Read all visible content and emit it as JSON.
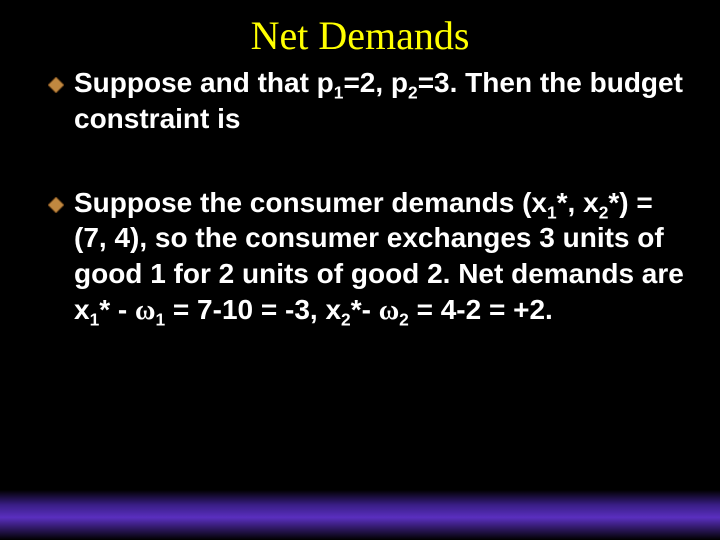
{
  "slide": {
    "title": "Net Demands",
    "title_color": "#ffff00",
    "title_font": "Times New Roman",
    "title_fontsize": 40,
    "background_color": "#000000",
    "body_text_color": "#ffffff",
    "body_fontsize": 28,
    "body_fontweight": "bold",
    "bullets": [
      {
        "runs": [
          {
            "t": "Suppose"
          },
          {
            "t": "                                and that p"
          },
          {
            "t": "1",
            "sub": true
          },
          {
            "t": "=2, p"
          },
          {
            "t": "2",
            "sub": true
          },
          {
            "t": "=3.  Then the budget constraint is"
          }
        ]
      },
      {
        "runs": [
          {
            "t": "Suppose the consumer demands (x"
          },
          {
            "t": "1",
            "sub": true
          },
          {
            "t": "*, x"
          },
          {
            "t": "2",
            "sub": true
          },
          {
            "t": "*) = (7, 4), so the consumer exchanges 3 units of good 1 for 2 units of good 2.  Net demands are x"
          },
          {
            "t": "1",
            "sub": true
          },
          {
            "t": "* - "
          },
          {
            "t": "w",
            "omega": true
          },
          {
            "t": "1",
            "sub": true
          },
          {
            "t": " = 7-10 = -3,  x"
          },
          {
            "t": "2",
            "sub": true
          },
          {
            "t": "*- "
          },
          {
            "t": "w",
            "omega": true
          },
          {
            "t": "2",
            "sub": true
          },
          {
            "t": " = 4-2 = +2."
          }
        ]
      }
    ],
    "bullet_marker": {
      "shape": "diamond",
      "fill": "#c08840",
      "stroke": "#654018",
      "size": 16
    },
    "footer_gradient": {
      "from": "#5a2fbf",
      "to": "#000000",
      "height": 50
    }
  }
}
